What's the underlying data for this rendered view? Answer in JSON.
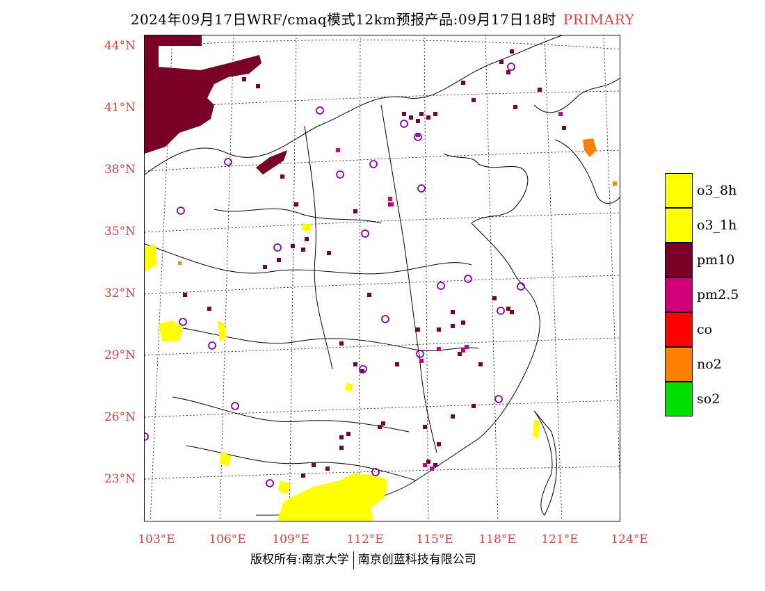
{
  "title": {
    "main": "2024年09月17日WRF/cmaq模式12km预报产品:09月17日18时",
    "tag": "PRIMARY"
  },
  "axes": {
    "lat_labels": [
      "44°N",
      "41°N",
      "38°N",
      "35°N",
      "32°N",
      "29°N",
      "26°N",
      "23°N"
    ],
    "lon_labels": [
      "103°E",
      "106°E",
      "109°E",
      "112°E",
      "115°E",
      "118°E",
      "121°E",
      "124°E"
    ]
  },
  "legend": [
    {
      "label": "o3_8h",
      "color": "#ffff00"
    },
    {
      "label": "o3_1h",
      "color": "#ffff00"
    },
    {
      "label": "pm10",
      "color": "#7b0028"
    },
    {
      "label": "pm2.5",
      "color": "#d0007a"
    },
    {
      "label": "co",
      "color": "#ff0000"
    },
    {
      "label": "no2",
      "color": "#ff7f00"
    },
    {
      "label": "so2",
      "color": "#00e000"
    }
  ],
  "footer": {
    "left": "版权所有:南京大学",
    "right": "南京创蓝科技有限公司"
  },
  "colors": {
    "label_red": "#e04040",
    "station_circle": "#8000c0"
  }
}
